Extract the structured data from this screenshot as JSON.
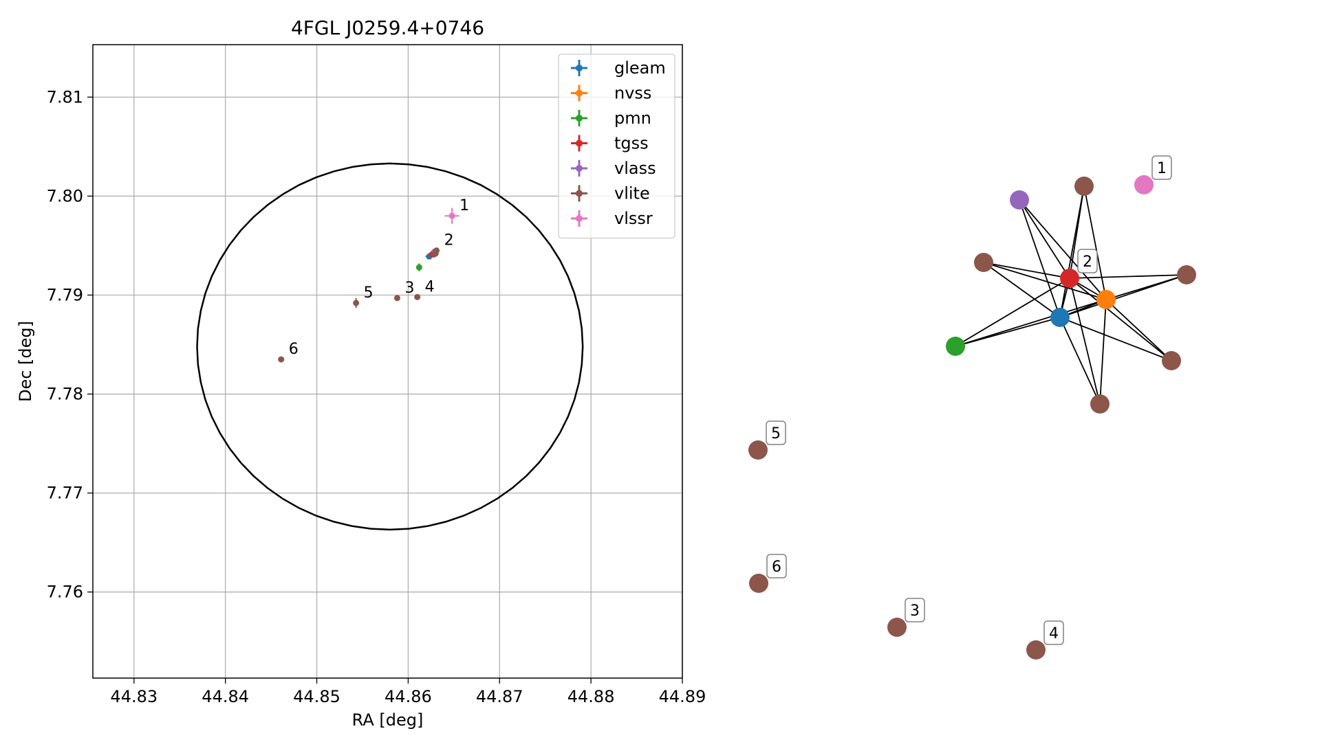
{
  "colors": {
    "gleam": "#1f77b4",
    "nvss": "#ff7f0e",
    "pmn": "#2ca02c",
    "tgss": "#d62728",
    "vlass": "#9467bd",
    "vlite": "#8c564b",
    "vlssr": "#e377c2",
    "grid": "#b0b0b0",
    "ellipse": "#000000"
  },
  "chart_data": [
    {
      "type": "scatter",
      "title": "4FGL J0259.4+0746",
      "xlabel": "RA [deg]",
      "ylabel": "Dec [deg]",
      "xlim": [
        44.8255,
        44.89
      ],
      "ylim": [
        7.7513,
        7.8153
      ],
      "xticks": [
        "44.83",
        "44.84",
        "44.85",
        "44.86",
        "44.87",
        "44.88",
        "44.89"
      ],
      "yticks": [
        "7.76",
        "7.77",
        "7.78",
        "7.79",
        "7.80",
        "7.81"
      ],
      "grid": true,
      "legend_position": "top-right",
      "legend": [
        "gleam",
        "nvss",
        "pmn",
        "tgss",
        "vlass",
        "vlite",
        "vlssr"
      ],
      "ellipse": {
        "center": [
          44.858,
          7.7848
        ],
        "half_width": 0.0211,
        "half_height": 0.0185
      },
      "series": [
        {
          "name": "gleam",
          "points": [
            {
              "x": 44.8623,
              "y": 7.7939,
              "xerr": 0.0004,
              "yerr": 0.0002
            }
          ]
        },
        {
          "name": "nvss",
          "points": [
            {
              "x": 44.8628,
              "y": 7.7943,
              "xerr": 0.0002,
              "yerr": 0.0002
            }
          ]
        },
        {
          "name": "pmn",
          "points": [
            {
              "x": 44.8612,
              "y": 7.7928,
              "xerr": 0.0003,
              "yerr": 0.0004
            }
          ]
        },
        {
          "name": "tgss",
          "points": [
            {
              "x": 44.8626,
              "y": 7.7941,
              "xerr": 0.0002,
              "yerr": 0.0002
            }
          ]
        },
        {
          "name": "vlass",
          "points": [
            {
              "x": 44.8629,
              "y": 7.7944,
              "xerr": 0.0001,
              "yerr": 0.0001
            }
          ]
        },
        {
          "name": "vlite",
          "points": [
            {
              "x": 44.8631,
              "y": 7.7945,
              "xerr": 0.0002,
              "yerr": 0.0002,
              "label": "2"
            },
            {
              "x": 44.863,
              "y": 7.7942,
              "xerr": 0.0002,
              "yerr": 0.0002
            },
            {
              "x": 44.8628,
              "y": 7.7941,
              "xerr": 0.0002,
              "yerr": 0.0002
            },
            {
              "x": 44.8588,
              "y": 7.7897,
              "xerr": 0.0002,
              "yerr": 0.0002,
              "label": "3"
            },
            {
              "x": 44.861,
              "y": 7.7898,
              "xerr": 0.0002,
              "yerr": 0.0002,
              "label": "4"
            },
            {
              "x": 44.8543,
              "y": 7.7892,
              "xerr": 0.0003,
              "yerr": 0.0005,
              "label": "5"
            },
            {
              "x": 44.8461,
              "y": 7.7835,
              "xerr": 0.0002,
              "yerr": 0.0002,
              "label": "6"
            }
          ]
        },
        {
          "name": "vlssr",
          "points": [
            {
              "x": 44.8648,
              "y": 7.798,
              "xerr": 0.0008,
              "yerr": 0.0008,
              "label": "1"
            }
          ]
        }
      ]
    },
    {
      "type": "network",
      "nodes": [
        {
          "id": "n1",
          "series": "vlssr",
          "label": "1"
        },
        {
          "id": "n2",
          "series": "tgss",
          "label": "2"
        },
        {
          "id": "nvss",
          "series": "nvss",
          "label": ""
        },
        {
          "id": "gleam",
          "series": "gleam",
          "label": ""
        },
        {
          "id": "vlass",
          "series": "vlass",
          "label": ""
        },
        {
          "id": "pmn",
          "series": "pmn",
          "label": ""
        },
        {
          "id": "va",
          "series": "vlite",
          "label": ""
        },
        {
          "id": "vb",
          "series": "vlite",
          "label": ""
        },
        {
          "id": "vc",
          "series": "vlite",
          "label": ""
        },
        {
          "id": "vd",
          "series": "vlite",
          "label": ""
        },
        {
          "id": "ve",
          "series": "vlite",
          "label": ""
        },
        {
          "id": "n5",
          "series": "vlite",
          "label": "5"
        },
        {
          "id": "n6",
          "series": "vlite",
          "label": "6"
        },
        {
          "id": "n3",
          "series": "vlite",
          "label": "3"
        },
        {
          "id": "n4",
          "series": "vlite",
          "label": "4"
        }
      ],
      "edges": [
        [
          "va",
          "n2"
        ],
        [
          "va",
          "nvss"
        ],
        [
          "va",
          "gleam"
        ],
        [
          "vb",
          "n2"
        ],
        [
          "vb",
          "nvss"
        ],
        [
          "vb",
          "gleam"
        ],
        [
          "vc",
          "n2"
        ],
        [
          "vc",
          "nvss"
        ],
        [
          "vc",
          "gleam"
        ],
        [
          "vd",
          "n2"
        ],
        [
          "vd",
          "nvss"
        ],
        [
          "vd",
          "gleam"
        ],
        [
          "ve",
          "n2"
        ],
        [
          "ve",
          "nvss"
        ],
        [
          "ve",
          "gleam"
        ],
        [
          "vlass",
          "n2"
        ],
        [
          "vlass",
          "nvss"
        ],
        [
          "vlass",
          "gleam"
        ],
        [
          "pmn",
          "n2"
        ],
        [
          "pmn",
          "nvss"
        ],
        [
          "pmn",
          "gleam"
        ],
        [
          "n2",
          "nvss"
        ],
        [
          "n2",
          "gleam"
        ],
        [
          "nvss",
          "gleam"
        ]
      ]
    }
  ]
}
